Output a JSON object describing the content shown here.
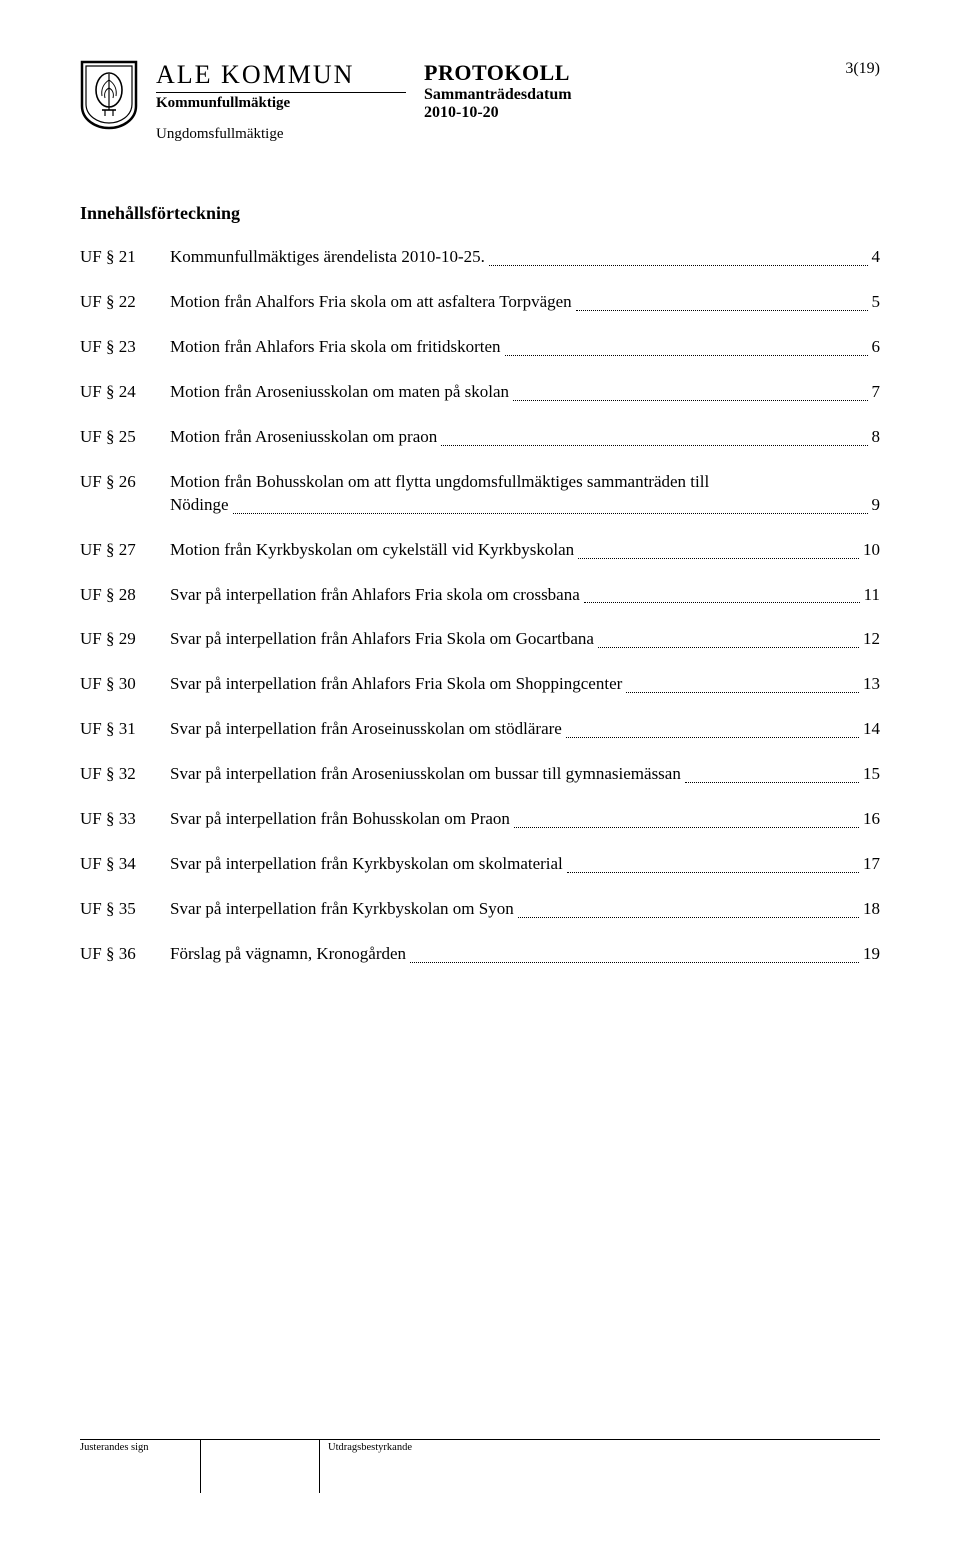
{
  "header": {
    "org_name": "ALE KOMMUN",
    "org_sub": "Kommunfullmäktige",
    "org_sub2": "Ungdomsfullmäktige",
    "doc_title": "PROTOKOLL",
    "doc_sub": "Sammanträdesdatum",
    "doc_date": "2010-10-20",
    "page_num": "3(19)"
  },
  "toc_heading": "Innehållsförteckning",
  "toc": [
    {
      "label": "UF § 21",
      "text": "Kommunfullmäktiges ärendelista 2010-10-25.",
      "page": "4"
    },
    {
      "label": "UF § 22",
      "text": "Motion från Ahalfors Fria skola om att asfaltera Torpvägen",
      "page": "5"
    },
    {
      "label": "UF § 23",
      "text": "Motion från Ahlafors Fria skola om fritidskorten",
      "page": "6"
    },
    {
      "label": "UF § 24",
      "text": "Motion från Aroseniusskolan om maten på skolan",
      "page": "7"
    },
    {
      "label": "UF § 25",
      "text": "Motion från Aroseniusskolan om praon",
      "page": "8"
    },
    {
      "label": "UF § 26",
      "line1": "Motion från Bohusskolan om att flytta ungdomsfullmäktiges sammanträden till",
      "line2": "Nödinge",
      "page": "9",
      "wrap": true
    },
    {
      "label": "UF § 27",
      "text": "Motion från Kyrkbyskolan om cykelställ vid Kyrkbyskolan",
      "page": "10"
    },
    {
      "label": "UF § 28",
      "text": "Svar på interpellation från Ahlafors Fria skola om crossbana",
      "page": "11"
    },
    {
      "label": "UF § 29",
      "text": "Svar på interpellation från Ahlafors Fria Skola om Gocartbana",
      "page": "12"
    },
    {
      "label": "UF § 30",
      "text": "Svar på interpellation från Ahlafors Fria Skola om Shoppingcenter",
      "page": "13"
    },
    {
      "label": "UF § 31",
      "text": "Svar på interpellation från Aroseinusskolan om stödlärare",
      "page": "14"
    },
    {
      "label": "UF § 32",
      "text": "Svar på interpellation från Aroseniusskolan om bussar till gymnasiemässan",
      "page": "15"
    },
    {
      "label": "UF § 33",
      "text": "Svar på interpellation från Bohusskolan om Praon",
      "page": "16"
    },
    {
      "label": "UF § 34",
      "text": "Svar på interpellation från Kyrkbyskolan om skolmaterial",
      "page": "17"
    },
    {
      "label": "UF § 35",
      "text": "Svar på interpellation från Kyrkbyskolan om Syon",
      "page": "18"
    },
    {
      "label": "UF § 36",
      "text": "Förslag på vägnamn, Kronogården",
      "page": "19"
    }
  ],
  "footer": {
    "left_label": "Justerandes sign",
    "right_label": "Utdragsbestyrkande"
  }
}
